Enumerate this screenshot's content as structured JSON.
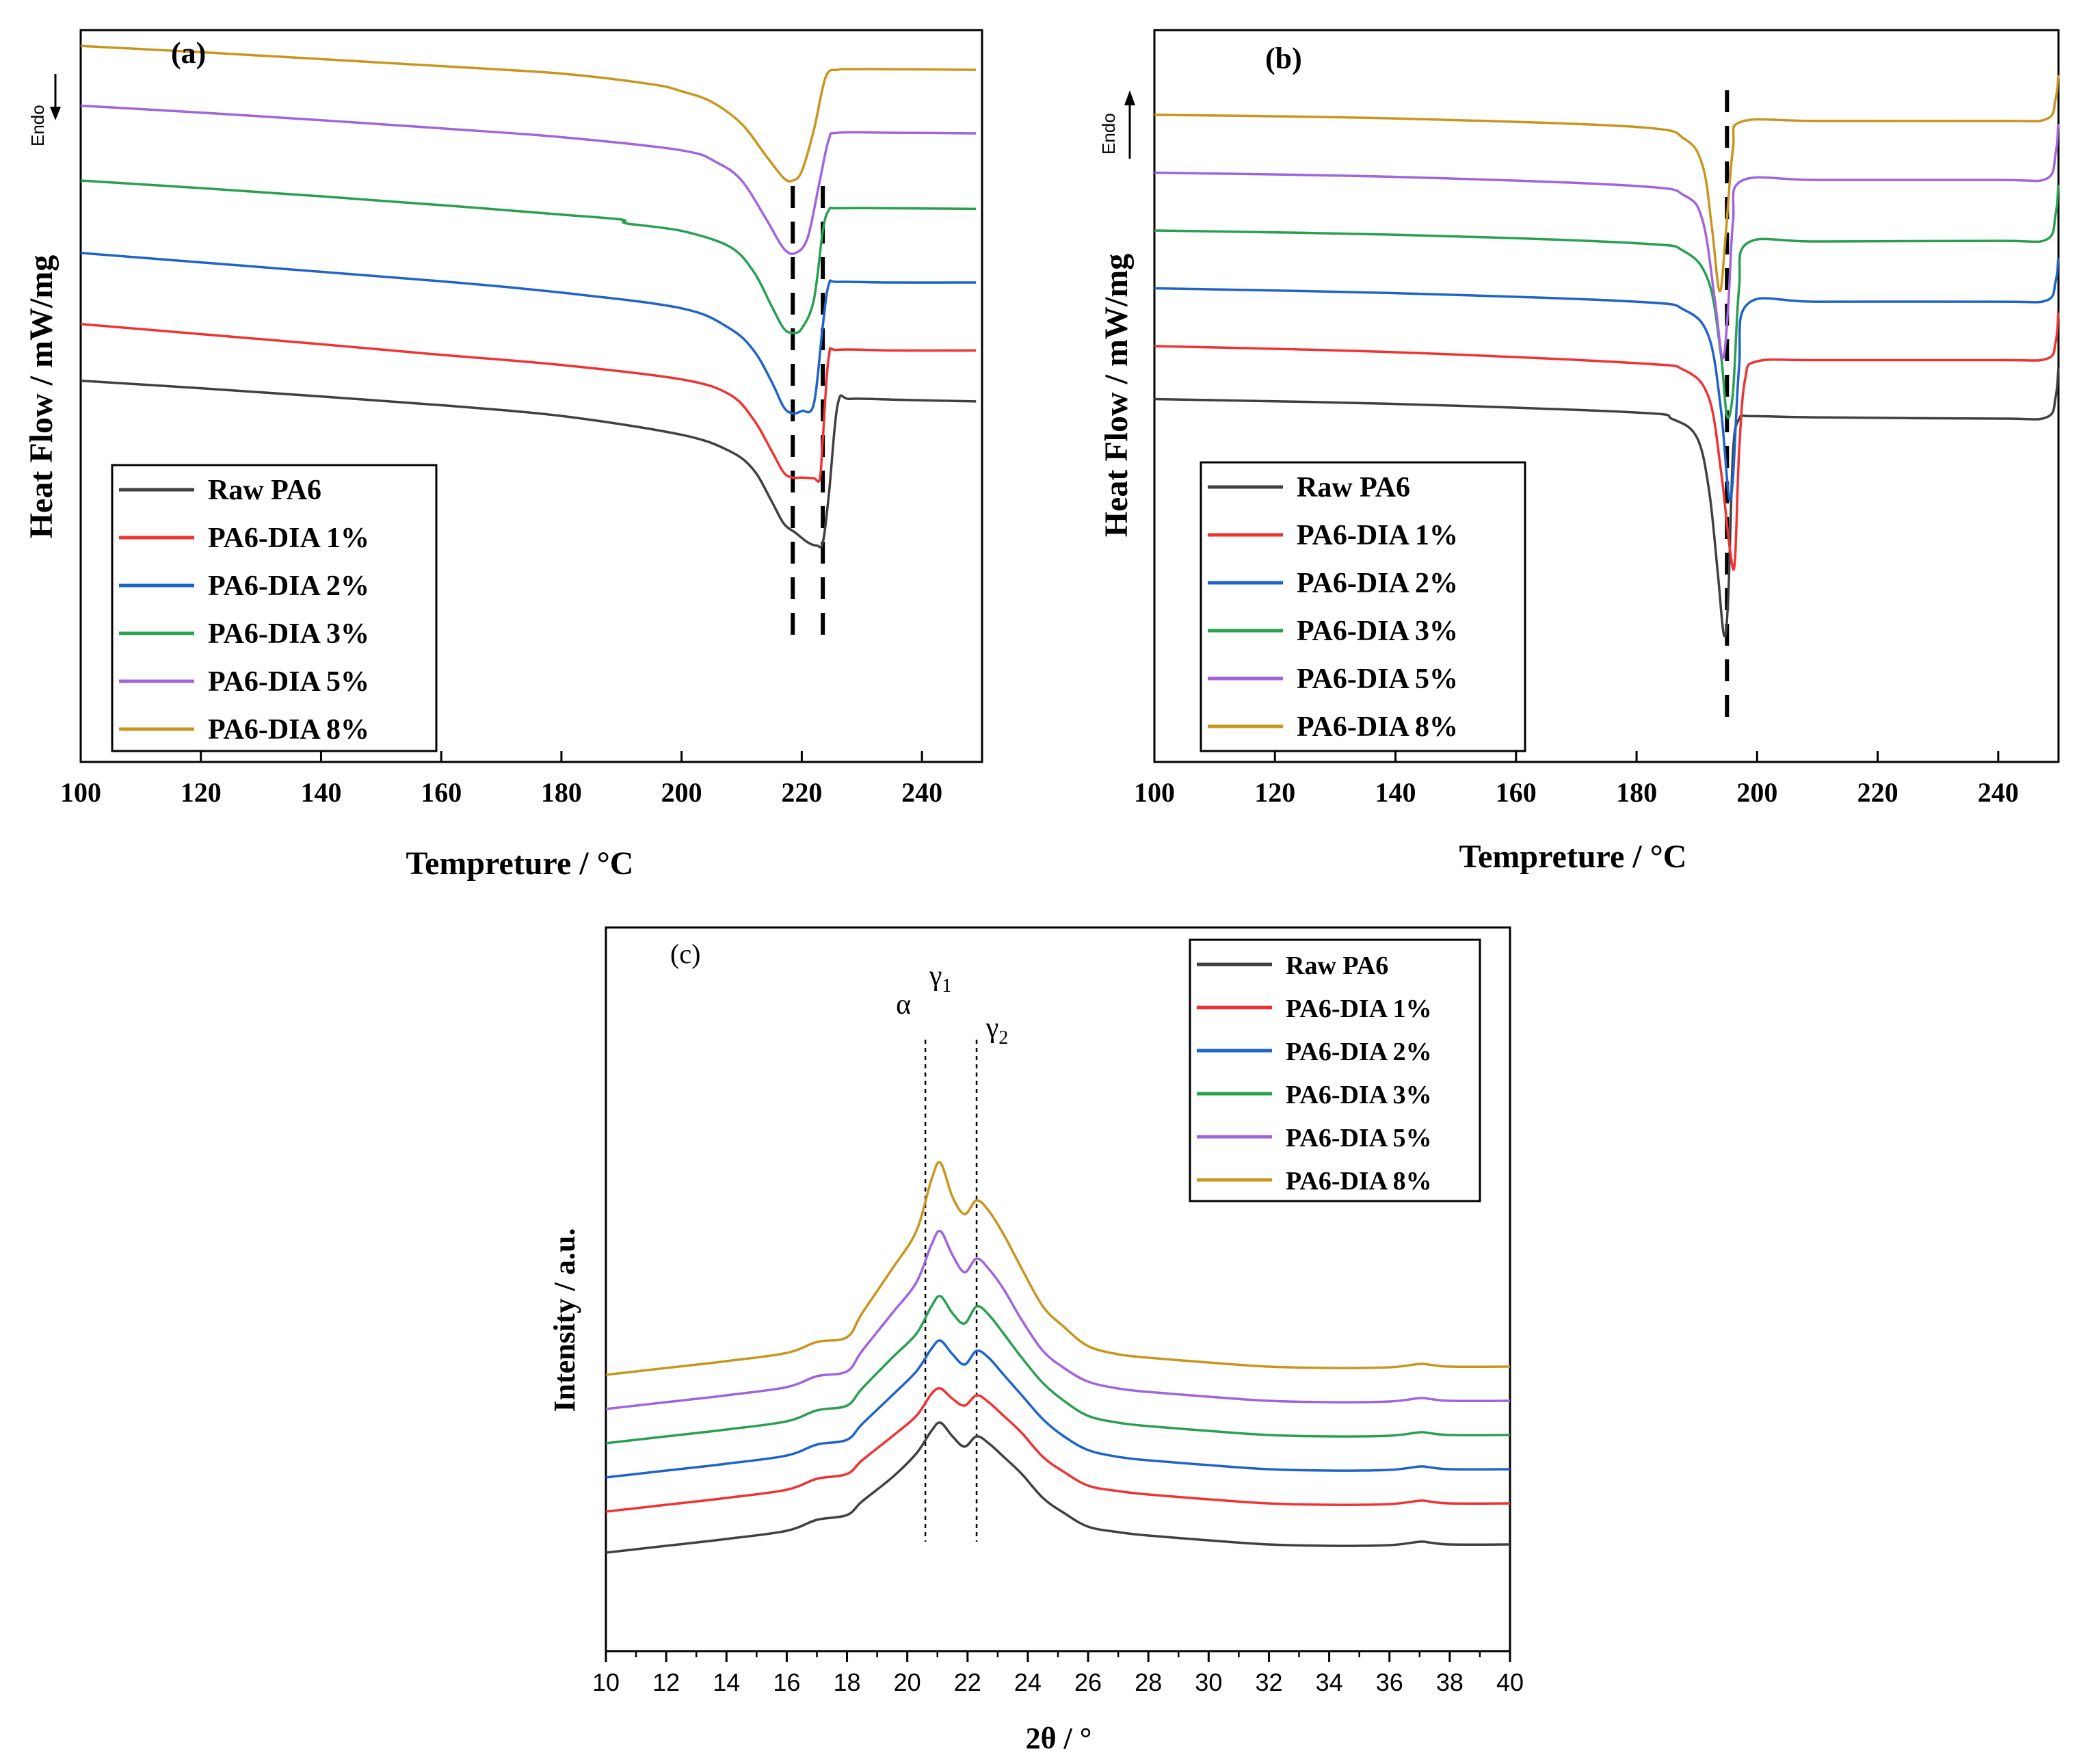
{
  "chart_data": [
    {
      "id": "a",
      "type": "line",
      "panel_label": "(a)",
      "xlabel": "Tempreture / °C",
      "ylabel": "Heat Flow / mW/mg",
      "endo_label": "Endo",
      "endo_direction": "down",
      "xlim": [
        100,
        250
      ],
      "x_ticks": [
        100,
        120,
        140,
        160,
        180,
        200,
        220,
        240
      ],
      "ylim": [
        0,
        100
      ],
      "y_ticks_shown": false,
      "reference_lines": [
        218.5,
        223.5
      ],
      "legend": [
        "Raw PA6",
        "PA6-DIA 1%",
        "PA6-DIA 2%",
        "PA6-DIA 3%",
        "PA6-DIA 5%",
        "PA6-DIA 8%"
      ],
      "series": [
        {
          "name": "Raw PA6",
          "color": "#404040",
          "x": [
            100,
            120,
            140,
            160,
            180,
            200,
            208,
            212,
            215,
            217,
            219,
            221,
            222.5,
            223.5,
            224.5,
            226,
            228,
            235,
            249
          ],
          "values": [
            48.2,
            47.0,
            45.7,
            44.3,
            42.6,
            39.6,
            37.0,
            34.0,
            29.0,
            25.5,
            24.0,
            22.5,
            22.0,
            22.5,
            30,
            44.5,
            45.3,
            45.2,
            44.9
          ]
        },
        {
          "name": "PA6-DIA 1%",
          "color": "#f03232",
          "x": [
            100,
            120,
            140,
            160,
            180,
            200,
            208,
            212,
            215,
            217,
            218.5,
            220,
            222,
            223,
            223.5,
            224.5,
            226,
            235,
            249
          ],
          "values": [
            57.2,
            55.6,
            54.0,
            52.3,
            50.7,
            48.4,
            46.0,
            42.0,
            37.0,
            33.6,
            32.8,
            32.8,
            32.7,
            32.6,
            39.0,
            52.0,
            53.1,
            53.0,
            53.0
          ]
        },
        {
          "name": "PA6-DIA 2%",
          "color": "#1e64c8",
          "x": [
            100,
            120,
            140,
            160,
            180,
            200,
            208,
            212,
            215,
            217,
            218.5,
            220,
            222,
            223.5,
            224.5,
            226,
            235,
            249
          ],
          "values": [
            68.5,
            67.0,
            65.5,
            64.0,
            62.2,
            59.7,
            56.5,
            53.0,
            48.0,
            44.0,
            43.0,
            43.4,
            44.5,
            57.0,
            63.5,
            63.9,
            63.8,
            63.8
          ]
        },
        {
          "name": "PA6-DIA 3%",
          "color": "#28a050",
          "x": [
            100,
            120,
            140,
            160,
            180,
            190,
            190.8,
            200,
            208,
            212,
            215,
            217,
            218.5,
            220,
            222,
            223.5,
            224.5,
            226,
            235,
            249
          ],
          "values": [
            80.0,
            78.8,
            77.5,
            76.1,
            74.6,
            73.8,
            73.2,
            72.0,
            69.5,
            65.5,
            60.0,
            56.5,
            55.8,
            56.5,
            61.0,
            72.0,
            75.3,
            75.6,
            75.6,
            75.5
          ]
        },
        {
          "name": "PA6-DIA 5%",
          "color": "#a064dc",
          "x": [
            100,
            120,
            140,
            160,
            180,
            200,
            206,
            210,
            214,
            217,
            219,
            221,
            223,
            224.5,
            226,
            235,
            249
          ],
          "values": [
            91.9,
            90.8,
            89.6,
            88.3,
            86.9,
            84.8,
            82.8,
            80.0,
            74.0,
            69.2,
            68.5,
            71.0,
            80.0,
            86.5,
            87.6,
            87.6,
            87.5
          ]
        },
        {
          "name": "PA6-DIA 8%",
          "color": "#c8961e",
          "x": [
            100,
            120,
            140,
            160,
            180,
            195,
            200,
            205,
            210,
            214,
            217,
            218.5,
            220,
            222,
            224,
            226,
            228,
            235,
            249
          ],
          "values": [
            101.4,
            100.4,
            99.3,
            98.2,
            97.0,
            95.3,
            94.2,
            92.5,
            89.0,
            84.0,
            80.4,
            80.0,
            81.5,
            88.0,
            96.5,
            97.6,
            97.7,
            97.7,
            97.6
          ]
        }
      ]
    },
    {
      "id": "b",
      "type": "line",
      "panel_label": "(b)",
      "xlabel": "Tempreture / °C",
      "ylabel": "Heat Flow / mW/mg",
      "endo_label": "Endo",
      "endo_direction": "up",
      "xlim": [
        100,
        250
      ],
      "x_ticks": [
        100,
        120,
        140,
        160,
        180,
        200,
        220,
        240
      ],
      "ylim": [
        0,
        100
      ],
      "y_ticks_shown": false,
      "reference_lines": [
        195
      ],
      "legend": [
        "Raw PA6",
        "PA6-DIA 1%",
        "PA6-DIA 2%",
        "PA6-DIA 3%",
        "PA6-DIA 5%",
        "PA6-DIA 8%"
      ],
      "series": [
        {
          "name": "Raw PA6",
          "color": "#404040",
          "x": [
            100,
            140,
            180,
            186,
            190,
            192,
            193.5,
            194.5,
            195.2,
            196,
            197,
            199,
            210,
            240,
            248,
            249.5,
            250
          ],
          "values": [
            46.8,
            46.0,
            44.6,
            43.5,
            40.5,
            32,
            18,
            8.0,
            14,
            38,
            43.5,
            44.0,
            43.8,
            43.6,
            43.8,
            47,
            52
          ]
        },
        {
          "name": "PA6-DIA 1%",
          "color": "#f03232",
          "x": [
            100,
            140,
            180,
            188,
            192,
            194,
            195.5,
            196.3,
            197,
            198,
            200,
            210,
            240,
            248,
            249.5,
            250
          ],
          "values": [
            55.5,
            54.5,
            52.7,
            51.5,
            47,
            35,
            22,
            20.0,
            38,
            50,
            53.0,
            53.2,
            53.2,
            53.4,
            56,
            61
          ]
        },
        {
          "name": "PA6-DIA 2%",
          "color": "#1e64c8",
          "x": [
            100,
            140,
            180,
            188,
            192,
            194,
            195.3,
            196,
            197,
            198.5,
            210,
            240,
            248,
            249.5,
            250
          ],
          "values": [
            65.0,
            64.2,
            62.8,
            61.4,
            57,
            45,
            31,
            34,
            52,
            62.5,
            62.8,
            62.8,
            63.0,
            66,
            70
          ]
        },
        {
          "name": "PA6-DIA 3%",
          "color": "#28a050",
          "x": [
            100,
            140,
            180,
            188,
            192,
            194,
            195,
            196,
            197,
            198.5,
            210,
            240,
            248,
            249.5,
            250
          ],
          "values": [
            74.5,
            73.8,
            72.4,
            71.0,
            66,
            54,
            44,
            48,
            65,
            72.5,
            72.7,
            72.8,
            73.0,
            77,
            82
          ]
        },
        {
          "name": "PA6-DIA 5%",
          "color": "#a064dc",
          "x": [
            100,
            140,
            180,
            188,
            191,
            193,
            194.3,
            195.2,
            196,
            197.5,
            210,
            240,
            248,
            249.5,
            250
          ],
          "values": [
            84.0,
            83.3,
            81.8,
            80.2,
            76,
            63,
            53.5,
            62,
            76,
            82.7,
            82.8,
            82.8,
            83.0,
            87,
            92
          ]
        },
        {
          "name": "PA6-DIA 8%",
          "color": "#c8961e",
          "x": [
            100,
            140,
            180,
            188,
            191,
            192.5,
            193.8,
            194.8,
            196,
            197.5,
            210,
            240,
            248,
            249.5,
            250
          ],
          "values": [
            93.5,
            92.9,
            91.5,
            89.5,
            85,
            75,
            64.5,
            74,
            88,
            92.4,
            92.5,
            92.5,
            92.8,
            96,
            100
          ]
        }
      ]
    },
    {
      "id": "c",
      "type": "line",
      "panel_label": "(c)",
      "xlabel": "2θ / °",
      "ylabel": "Intensity / a.u.",
      "xlim": [
        10,
        40
      ],
      "x_ticks": [
        10,
        12,
        14,
        16,
        18,
        20,
        22,
        24,
        26,
        28,
        30,
        32,
        34,
        36,
        38,
        40
      ],
      "ylim": [
        0,
        100
      ],
      "y_ticks_shown": false,
      "reference_lines": [
        20.6,
        22.3
      ],
      "peak_annotations": [
        {
          "symbol": "α",
          "sub": "",
          "x": 20.6
        },
        {
          "symbol": "γ",
          "sub": "1",
          "x": 21.1
        },
        {
          "symbol": "γ",
          "sub": "2",
          "x": 22.3
        }
      ],
      "legend": [
        "Raw PA6",
        "PA6-DIA 1%",
        "PA6-DIA 2%",
        "PA6-DIA 3%",
        "PA6-DIA 5%",
        "PA6-DIA 8%"
      ],
      "series": [
        {
          "name": "Raw PA6",
          "color": "#404040",
          "x": [
            10,
            12,
            14,
            16,
            17,
            18,
            18.5,
            19.5,
            20.3,
            20.8,
            21.1,
            21.5,
            21.9,
            22.3,
            22.7,
            23.2,
            23.8,
            24.5,
            25.2,
            26,
            27,
            28,
            30,
            32,
            34,
            36,
            37,
            37.3,
            38,
            40
          ],
          "values": [
            11.0,
            12.0,
            13.0,
            14.2,
            15.8,
            16.5,
            18.5,
            22.0,
            25.5,
            28.8,
            30.0,
            28.0,
            26.5,
            28.0,
            27.0,
            25.0,
            22.5,
            19.0,
            16.8,
            14.8,
            14.0,
            13.5,
            12.8,
            12.2,
            12.0,
            12.1,
            12.6,
            12.5,
            12.2,
            12.2
          ]
        },
        {
          "name": "PA6-DIA 1%",
          "color": "#f03232",
          "x": [
            10,
            12,
            14,
            16,
            17,
            18,
            18.5,
            19.5,
            20.3,
            20.8,
            21.1,
            21.5,
            21.9,
            22.3,
            22.7,
            23.2,
            23.8,
            24.5,
            25.2,
            26,
            27,
            28,
            30,
            32,
            34,
            36,
            37,
            37.3,
            38,
            40
          ],
          "values": [
            17.0,
            18.0,
            19.0,
            20.2,
            21.8,
            22.5,
            24.5,
            28.0,
            31.0,
            34.2,
            35.0,
            33.5,
            32.5,
            34.0,
            33.0,
            31.0,
            28.5,
            25.0,
            22.8,
            20.8,
            20.0,
            19.5,
            18.8,
            18.2,
            18.0,
            18.1,
            18.6,
            18.5,
            18.2,
            18.2
          ]
        },
        {
          "name": "PA6-DIA 2%",
          "color": "#1e64c8",
          "x": [
            10,
            12,
            14,
            16,
            17,
            18,
            18.5,
            19.5,
            20.3,
            20.8,
            21.1,
            21.5,
            21.9,
            22.3,
            22.7,
            23.2,
            23.8,
            24.5,
            25.2,
            26,
            27,
            28,
            30,
            32,
            34,
            36,
            37,
            37.3,
            38,
            40
          ],
          "values": [
            22.0,
            23.0,
            24.0,
            25.2,
            26.8,
            27.5,
            29.8,
            34.0,
            37.5,
            40.8,
            42.0,
            40.0,
            38.5,
            40.5,
            39.5,
            37.0,
            34.0,
            30.5,
            28.0,
            26.0,
            25.0,
            24.5,
            23.8,
            23.2,
            23.0,
            23.1,
            23.6,
            23.5,
            23.2,
            23.2
          ]
        },
        {
          "name": "PA6-DIA 3%",
          "color": "#28a050",
          "x": [
            10,
            12,
            14,
            16,
            17,
            18,
            18.5,
            19.5,
            20.3,
            20.8,
            21.1,
            21.5,
            21.9,
            22.3,
            22.7,
            23.2,
            23.8,
            24.5,
            25.2,
            26,
            27,
            28,
            30,
            32,
            34,
            36,
            37,
            37.3,
            38,
            40
          ],
          "values": [
            27.0,
            28.0,
            29.0,
            30.2,
            31.8,
            32.5,
            35.0,
            39.5,
            43.0,
            47.0,
            48.5,
            46.0,
            44.5,
            47.0,
            45.8,
            43.0,
            39.5,
            35.8,
            33.2,
            31.0,
            30.0,
            29.5,
            28.8,
            28.2,
            28.0,
            28.1,
            28.6,
            28.5,
            28.2,
            28.2
          ]
        },
        {
          "name": "PA6-DIA 5%",
          "color": "#a064dc",
          "x": [
            10,
            12,
            14,
            16,
            17,
            18,
            18.5,
            19.5,
            20.3,
            20.8,
            21.1,
            21.5,
            21.9,
            22.3,
            22.7,
            23.2,
            23.8,
            24.5,
            25.2,
            26,
            27,
            28,
            30,
            32,
            34,
            36,
            37,
            37.3,
            38,
            40
          ],
          "values": [
            32.0,
            33.0,
            34.0,
            35.2,
            36.8,
            37.5,
            40.5,
            46.0,
            50.5,
            56.0,
            58.0,
            54.5,
            52.0,
            54.0,
            52.5,
            49.5,
            45.0,
            40.5,
            38.0,
            36.0,
            35.0,
            34.5,
            33.8,
            33.2,
            33.0,
            33.1,
            33.6,
            33.5,
            33.2,
            33.2
          ]
        },
        {
          "name": "PA6-DIA 8%",
          "color": "#c8961e",
          "x": [
            10,
            12,
            14,
            16,
            17,
            18,
            18.5,
            19.5,
            20.3,
            20.8,
            21.1,
            21.5,
            21.9,
            22.3,
            22.7,
            23.2,
            23.8,
            24.5,
            25.2,
            26,
            27,
            28,
            30,
            32,
            34,
            36,
            37,
            37.3,
            38,
            40
          ],
          "values": [
            37.0,
            38.0,
            39.0,
            40.2,
            41.8,
            42.5,
            46.0,
            52.5,
            58.0,
            65.5,
            68.0,
            63.0,
            60.5,
            62.5,
            61.0,
            57.5,
            52.5,
            47.0,
            44.0,
            41.2,
            40.0,
            39.5,
            38.8,
            38.2,
            38.0,
            38.1,
            38.6,
            38.5,
            38.2,
            38.2
          ]
        }
      ]
    }
  ]
}
